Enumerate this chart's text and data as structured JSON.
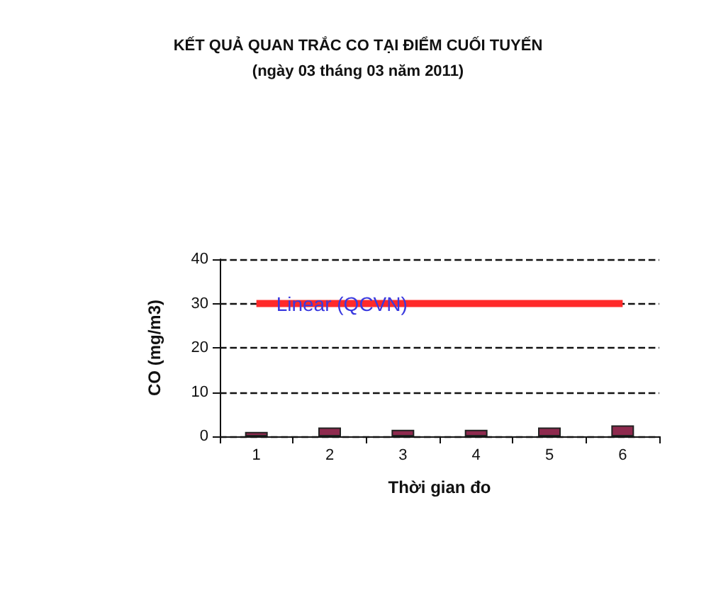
{
  "chart_data": {
    "type": "bar",
    "title": "KẾT QUẢ QUAN TRẮC CO TẠI ĐIỂM CUỐI TUYẾN",
    "subtitle": "(ngày 03 tháng 03 năm 2011)",
    "xlabel": "Thời gian đo",
    "ylabel": "CO (mg/m3)",
    "categories": [
      "1",
      "2",
      "3",
      "4",
      "5",
      "6"
    ],
    "series": [
      {
        "color": "#8e2a4e",
        "values": [
          1,
          2,
          1.5,
          1.5,
          2,
          2.5
        ]
      },
      {
        "name": "Linear (QCVN)",
        "type": "line",
        "color": "#ff2a2a",
        "values": [
          30,
          30,
          30,
          30,
          30,
          30
        ]
      }
    ],
    "ylim": [
      0,
      40
    ],
    "yticks": [
      0,
      10,
      20,
      30,
      40
    ],
    "grid": "y",
    "legend": false,
    "marker": "none"
  }
}
